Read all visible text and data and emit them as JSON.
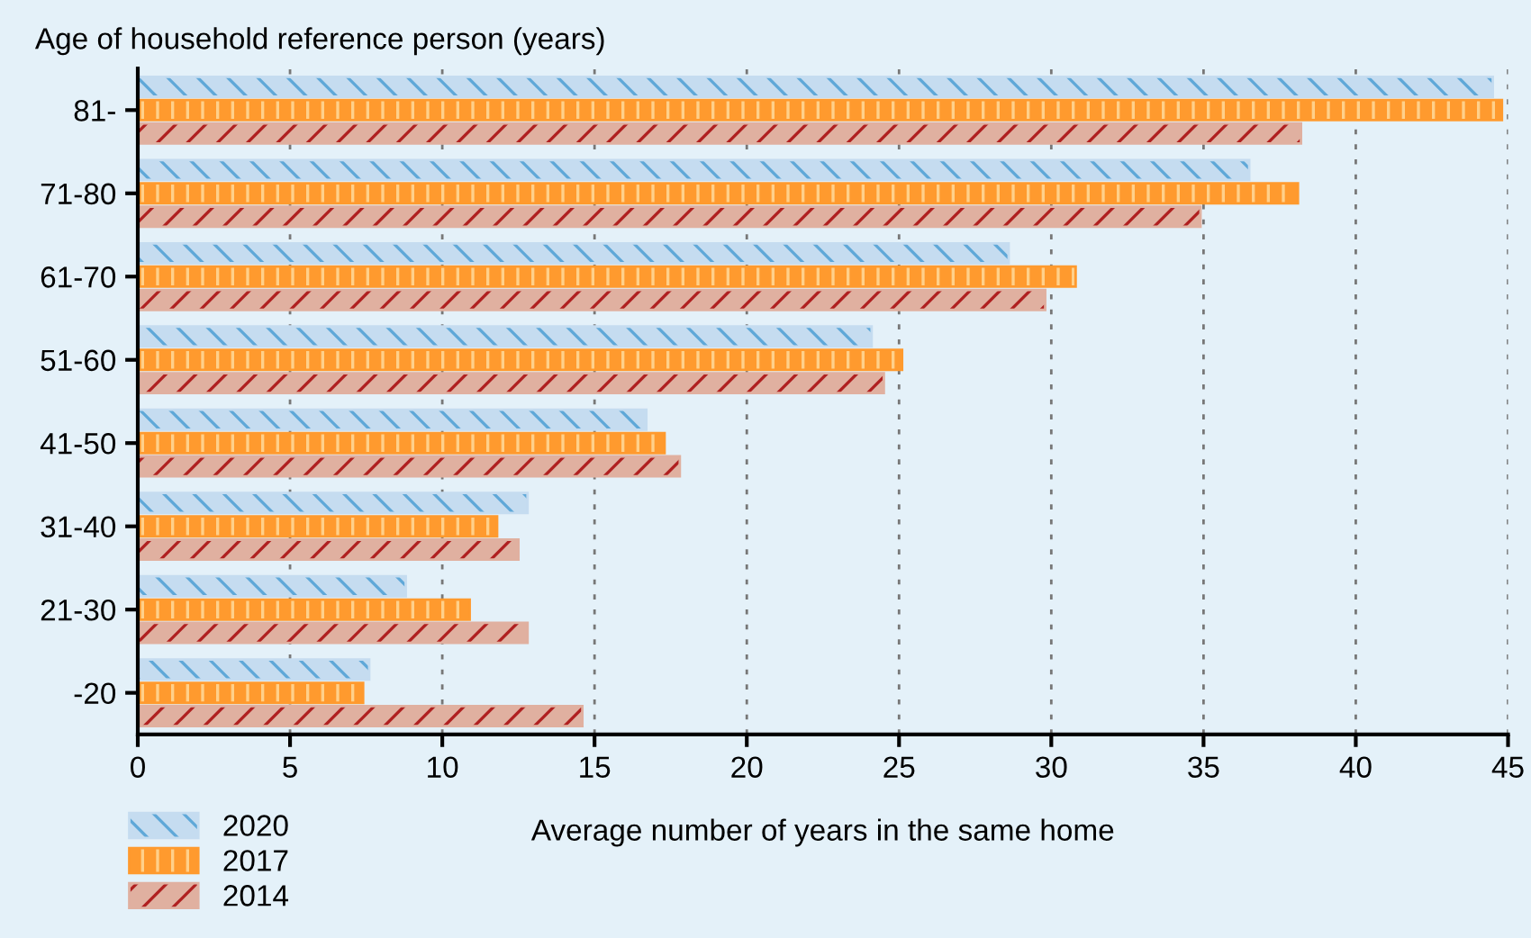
{
  "chart_data": {
    "type": "bar",
    "orientation": "horizontal",
    "ylabel": "Age of household reference person (years)",
    "xlabel": "Average number of years in the same home",
    "categories": [
      "81-",
      "71-80",
      "61-70",
      "51-60",
      "41-50",
      "31-40",
      "21-30",
      "-20"
    ],
    "series": [
      {
        "name": "2020",
        "color": "#c5dcf0",
        "values": [
          44.5,
          36.5,
          28.6,
          24.1,
          16.7,
          12.8,
          8.8,
          7.6
        ]
      },
      {
        "name": "2017",
        "color": "#ff9a2e",
        "values": [
          44.8,
          38.1,
          30.8,
          25.1,
          17.3,
          11.8,
          10.9,
          7.4
        ]
      },
      {
        "name": "2014",
        "color": "#e0b0a0",
        "values": [
          38.2,
          34.9,
          29.8,
          24.5,
          17.8,
          12.5,
          12.8,
          14.6
        ]
      }
    ],
    "xlim": [
      0,
      45
    ],
    "xticks": [
      0,
      5,
      10,
      15,
      20,
      25,
      30,
      35,
      40,
      45
    ],
    "grid": "x",
    "legend": "bottom left"
  }
}
